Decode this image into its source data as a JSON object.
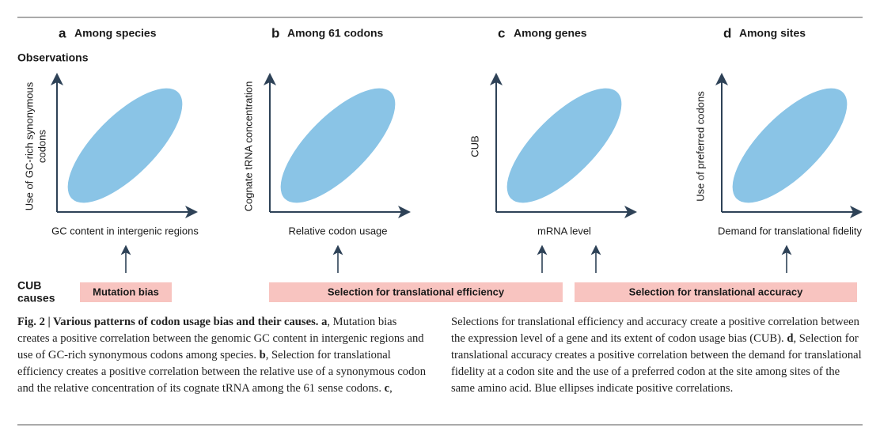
{
  "row_labels": {
    "observations": "Observations",
    "causes": [
      "CUB",
      "causes"
    ]
  },
  "panels": [
    {
      "letter": "a",
      "title": "Among species",
      "ylabel": [
        "Use of GC-rich synonymous",
        "codons"
      ],
      "xlabel": "GC content in intergenic regions"
    },
    {
      "letter": "b",
      "title": "Among 61 codons",
      "ylabel": [
        "Cognate tRNA concentration"
      ],
      "xlabel": "Relative codon usage"
    },
    {
      "letter": "c",
      "title": "Among genes",
      "ylabel": [
        "CUB"
      ],
      "xlabel": "mRNA level"
    },
    {
      "letter": "d",
      "title": "Among sites",
      "ylabel": [
        "Use of preferred codons"
      ],
      "xlabel": "Demand for translational fidelity"
    }
  ],
  "causes": [
    "Mutation bias",
    "Selection for translational efficiency",
    "Selection for translational accuracy"
  ],
  "caption": {
    "heading": "Fig. 2 | Various patterns of codon usage bias and their causes.",
    "parts": [
      {
        "letter": "a",
        "text": ", Mutation bias creates a positive correlation between the genomic GC content in intergenic regions and use of GC-rich synonymous codons among species."
      },
      {
        "letter": "b",
        "text": ", Selection for translational efficiency creates a positive correlation between the relative use of a synonymous codon and the relative concentration of its cognate tRNA among the 61 sense codons."
      },
      {
        "letter": "c",
        "text": ", Selections for translational efficiency and accuracy create a positive correlation between the expression level of a gene and its extent of codon usage bias (CUB)."
      },
      {
        "letter": "d",
        "text": ", Selection for translational accuracy creates a positive correlation between the demand for translational fidelity at a codon site and the use of a preferred codon at the site among sites of the same amino acid. Blue ellipses indicate positive correlations."
      }
    ]
  }
}
